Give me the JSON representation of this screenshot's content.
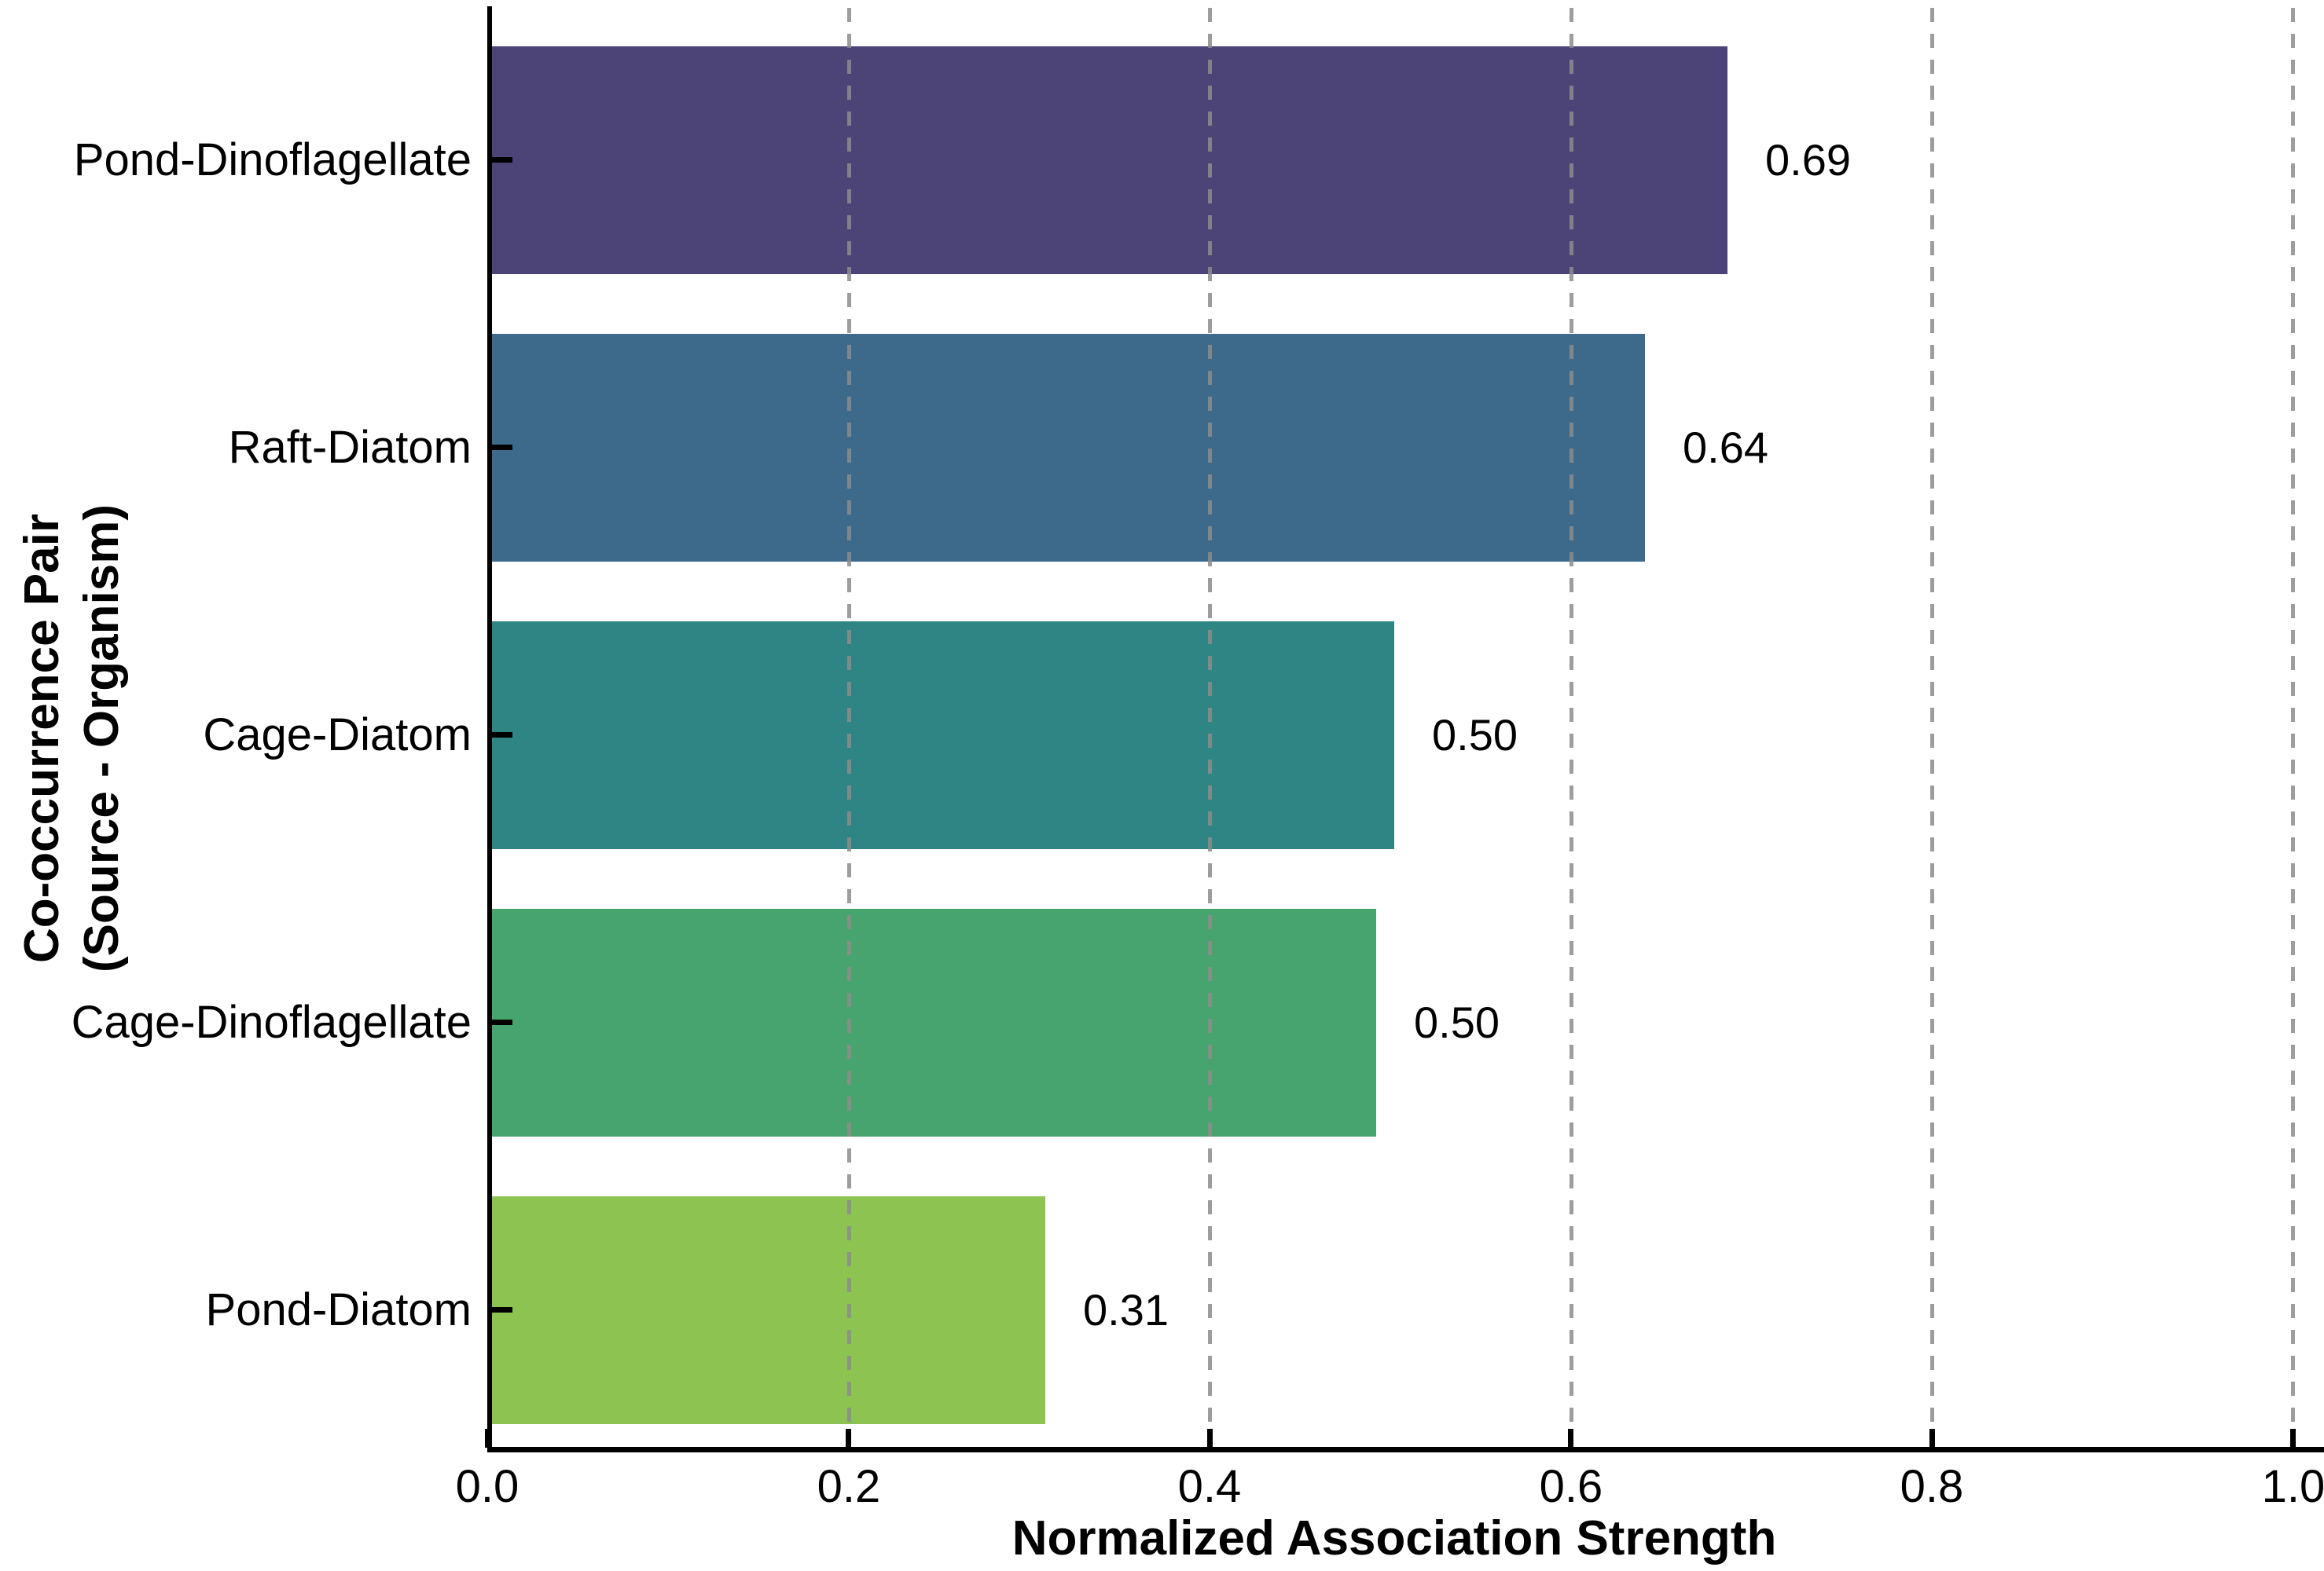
{
  "chart_data": {
    "type": "bar",
    "orientation": "horizontal",
    "title": "",
    "xlabel": "Normalized Association Strength",
    "ylabel_line1": "Co-occurrence Pair",
    "ylabel_line2": "(Source - Organism)",
    "categories": [
      "Pond-Dinoflagellate",
      "Raft-Diatom",
      "Cage-Diatom",
      "Cage-Dinoflagellate",
      "Pond-Diatom"
    ],
    "values": [
      0.69,
      0.64,
      0.5,
      0.5,
      0.31
    ],
    "value_labels": [
      "0.69",
      "0.64",
      "0.50",
      "0.50",
      "0.31"
    ],
    "bar_fractions": [
      0.686,
      0.64,
      0.501,
      0.491,
      0.307
    ],
    "bar_colors": [
      "#4c4477",
      "#3d6a8a",
      "#2e8584",
      "#48a46e",
      "#8dc351"
    ],
    "x_ticks": [
      "0.0",
      "0.2",
      "0.4",
      "0.6",
      "0.8",
      "1.0"
    ],
    "xlim": [
      0.0,
      1.0
    ],
    "grid": "dashed-vertical",
    "legend": "none",
    "colors": {
      "axis": "#000000",
      "gridline": "#8c8c8c",
      "background": "#ffffff"
    }
  },
  "layout_geometry_note": "horizontal bar chart, bars descend in value top to bottom"
}
